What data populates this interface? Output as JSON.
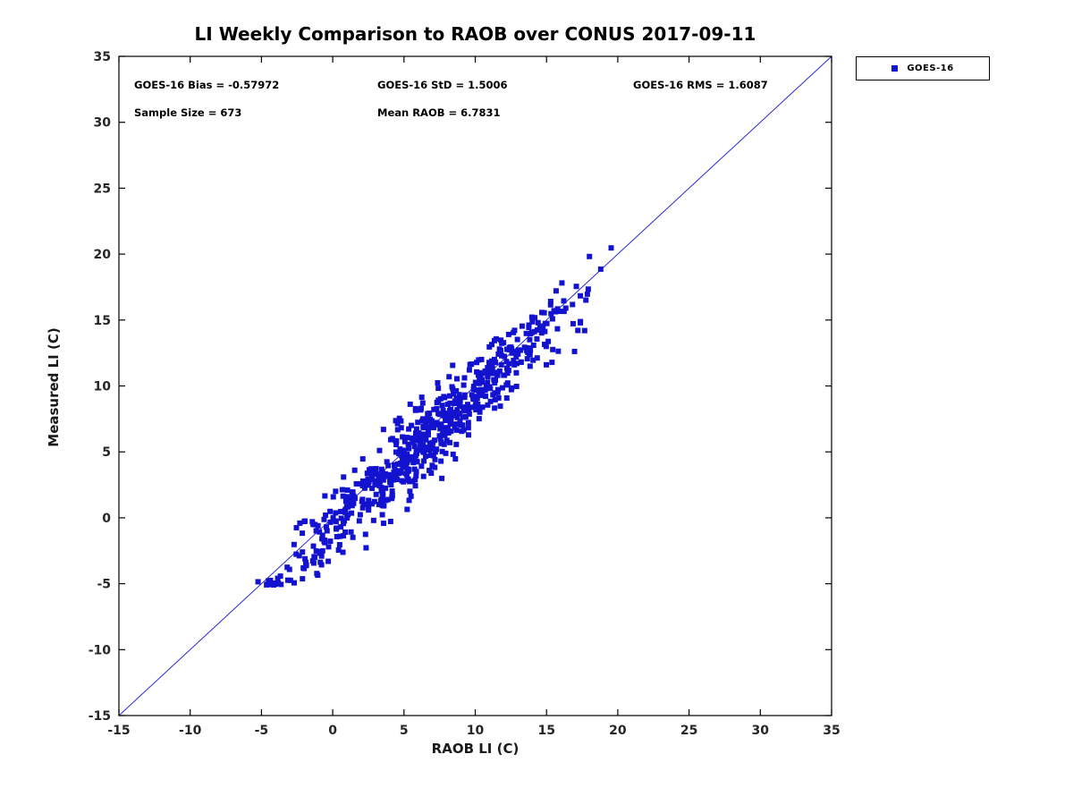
{
  "page": {
    "background": "#ffffff"
  },
  "chart_data": {
    "type": "scatter",
    "title": "LI Weekly Comparison to RAOB over CONUS 2017-09-11",
    "xlabel": "RAOB LI (C)",
    "ylabel": "Measured LI (C)",
    "xlim": [
      -15,
      35
    ],
    "ylim": [
      -15,
      35
    ],
    "xticks": [
      -15,
      -10,
      -5,
      0,
      5,
      10,
      15,
      20,
      25,
      30,
      35
    ],
    "yticks": [
      -15,
      -10,
      -5,
      0,
      5,
      10,
      15,
      20,
      25,
      30,
      35
    ],
    "grid": false,
    "axis_color": "#000000",
    "tick_label_color": "#262626",
    "legend": {
      "position": "top-right-outside",
      "entries": [
        {
          "label": "GOES-16",
          "marker": "square",
          "color": "#1212cf"
        }
      ]
    },
    "identity_line": {
      "from": [
        -15,
        -15
      ],
      "to": [
        35,
        35
      ],
      "color": "#2a2ad6",
      "width": 1
    },
    "series": [
      {
        "name": "GOES-16",
        "marker": "square",
        "marker_size_px": 6,
        "color": "#1212cf",
        "n_points": 673,
        "x_distribution": {
          "mean": 6.7831,
          "std_est": 5.2,
          "range": [
            -5.5,
            19.7
          ]
        },
        "y_model": {
          "relation": "y = x + bias + noise",
          "bias": -0.57972,
          "noise_std": 1.5006,
          "range": [
            -5.1,
            20.6
          ]
        }
      }
    ],
    "stats_annotations": {
      "bias_label": "GOES-16 Bias = -0.57972",
      "std_label": "GOES-16 StD = 1.5006",
      "rms_label": "GOES-16 RMS = 1.6087",
      "sample_label": "Sample Size = 673",
      "mean_raob_label": "Mean RAOB = 6.7831",
      "bias": -0.57972,
      "std": 1.5006,
      "rms": 1.6087,
      "sample_size": 673,
      "mean_raob": 6.7831
    }
  }
}
